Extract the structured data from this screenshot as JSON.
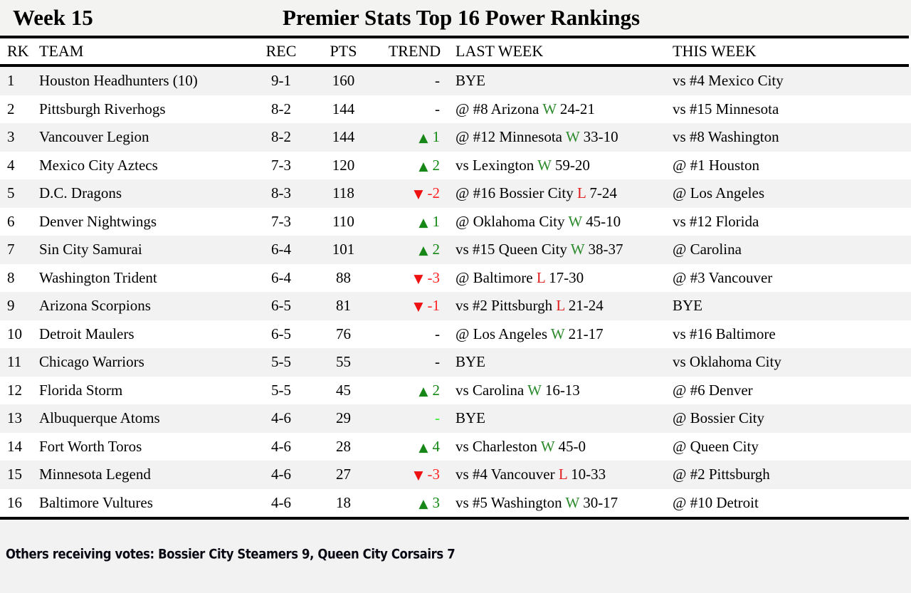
{
  "header": {
    "week_label": "Week 15",
    "title": "Premier Stats Top 16 Power Rankings"
  },
  "columns": {
    "rk": "RK",
    "team": "TEAM",
    "rec": "REC",
    "pts": "PTS",
    "trend": "TREND",
    "last_week": "LAST WEEK",
    "this_week": "THIS WEEK"
  },
  "colors": {
    "stripe": "#f2f2f2",
    "rule": "#000000",
    "trend_up": "#178717",
    "trend_down": "#ee1111",
    "trend_flat_green": "#44ee44",
    "win": "#2d8a2d",
    "loss": "#e02020"
  },
  "rows": [
    {
      "rk": "1",
      "team": "Houston Headhunters (10)",
      "rec": "9-1",
      "pts": "160",
      "trend": {
        "type": "flat",
        "symbol": "",
        "value": "-"
      },
      "last_week": {
        "text": "BYE",
        "result": "",
        "score": ""
      },
      "this_week": "vs #4 Mexico City"
    },
    {
      "rk": "2",
      "team": "Pittsburgh Riverhogs",
      "rec": "8-2",
      "pts": "144",
      "trend": {
        "type": "flat",
        "symbol": "",
        "value": "-"
      },
      "last_week": {
        "text": "@ #8 Arizona",
        "result": "W",
        "score": "24-21"
      },
      "this_week": "vs #15 Minnesota"
    },
    {
      "rk": "3",
      "team": "Vancouver Legion",
      "rec": "8-2",
      "pts": "144",
      "trend": {
        "type": "up",
        "symbol": "▲",
        "value": "1"
      },
      "last_week": {
        "text": "@ #12 Minnesota",
        "result": "W",
        "score": "33-10"
      },
      "this_week": "vs #8 Washington"
    },
    {
      "rk": "4",
      "team": "Mexico City Aztecs",
      "rec": "7-3",
      "pts": "120",
      "trend": {
        "type": "up",
        "symbol": "▲",
        "value": "2"
      },
      "last_week": {
        "text": "vs Lexington",
        "result": "W",
        "score": "59-20"
      },
      "this_week": "@ #1 Houston"
    },
    {
      "rk": "5",
      "team": "D.C. Dragons",
      "rec": "8-3",
      "pts": "118",
      "trend": {
        "type": "down",
        "symbol": "▼",
        "value": "-2"
      },
      "last_week": {
        "text": "@ #16 Bossier City",
        "result": "L",
        "score": "7-24"
      },
      "this_week": "@ Los Angeles"
    },
    {
      "rk": "6",
      "team": "Denver Nightwings",
      "rec": "7-3",
      "pts": "110",
      "trend": {
        "type": "up",
        "symbol": "▲",
        "value": "1"
      },
      "last_week": {
        "text": "@ Oklahoma City",
        "result": "W",
        "score": "45-10"
      },
      "this_week": "vs #12 Florida"
    },
    {
      "rk": "7",
      "team": "Sin City Samurai",
      "rec": "6-4",
      "pts": "101",
      "trend": {
        "type": "up",
        "symbol": "▲",
        "value": "2"
      },
      "last_week": {
        "text": "vs #15 Queen City",
        "result": "W",
        "score": "38-37"
      },
      "this_week": "@ Carolina"
    },
    {
      "rk": "8",
      "team": "Washington Trident",
      "rec": "6-4",
      "pts": "88",
      "trend": {
        "type": "down",
        "symbol": "▼",
        "value": "-3"
      },
      "last_week": {
        "text": "@ Baltimore",
        "result": "L",
        "score": "17-30"
      },
      "this_week": "@ #3 Vancouver"
    },
    {
      "rk": "9",
      "team": "Arizona Scorpions",
      "rec": "6-5",
      "pts": "81",
      "trend": {
        "type": "down",
        "symbol": "▼",
        "value": "-1"
      },
      "last_week": {
        "text": "vs #2 Pittsburgh",
        "result": "L",
        "score": "21-24"
      },
      "this_week": "BYE"
    },
    {
      "rk": "10",
      "team": "Detroit Maulers",
      "rec": "6-5",
      "pts": "76",
      "trend": {
        "type": "flat",
        "symbol": "",
        "value": "-"
      },
      "last_week": {
        "text": "@ Los Angeles",
        "result": "W",
        "score": "21-17"
      },
      "this_week": "vs #16 Baltimore"
    },
    {
      "rk": "11",
      "team": "Chicago Warriors",
      "rec": "5-5",
      "pts": "55",
      "trend": {
        "type": "flat",
        "symbol": "",
        "value": "-"
      },
      "last_week": {
        "text": "BYE",
        "result": "",
        "score": ""
      },
      "this_week": "vs Oklahoma City"
    },
    {
      "rk": "12",
      "team": "Florida Storm",
      "rec": "5-5",
      "pts": "45",
      "trend": {
        "type": "up",
        "symbol": "▲",
        "value": "2"
      },
      "last_week": {
        "text": "vs Carolina",
        "result": "W",
        "score": "16-13"
      },
      "this_week": "@ #6 Denver"
    },
    {
      "rk": "13",
      "team": "Albuquerque Atoms",
      "rec": "4-6",
      "pts": "29",
      "trend": {
        "type": "flat-green",
        "symbol": "",
        "value": "-"
      },
      "last_week": {
        "text": "BYE",
        "result": "",
        "score": ""
      },
      "this_week": "@ Bossier City"
    },
    {
      "rk": "14",
      "team": "Fort Worth Toros",
      "rec": "4-6",
      "pts": "28",
      "trend": {
        "type": "up",
        "symbol": "▲",
        "value": "4"
      },
      "last_week": {
        "text": "vs Charleston",
        "result": "W",
        "score": "45-0"
      },
      "this_week": "@ Queen City"
    },
    {
      "rk": "15",
      "team": "Minnesota Legend",
      "rec": "4-6",
      "pts": "27",
      "trend": {
        "type": "down",
        "symbol": "▼",
        "value": "-3"
      },
      "last_week": {
        "text": "vs #4 Vancouver",
        "result": "L",
        "score": "10-33"
      },
      "this_week": "@ #2 Pittsburgh"
    },
    {
      "rk": "16",
      "team": "Baltimore Vultures",
      "rec": "4-6",
      "pts": "18",
      "trend": {
        "type": "up",
        "symbol": "▲",
        "value": "3"
      },
      "last_week": {
        "text": "vs #5 Washington",
        "result": "W",
        "score": "30-17"
      },
      "this_week": "@ #10 Detroit"
    }
  ],
  "footer": {
    "others_votes": "Others receiving votes: Bossier City Steamers 9, Queen City Corsairs 7"
  }
}
